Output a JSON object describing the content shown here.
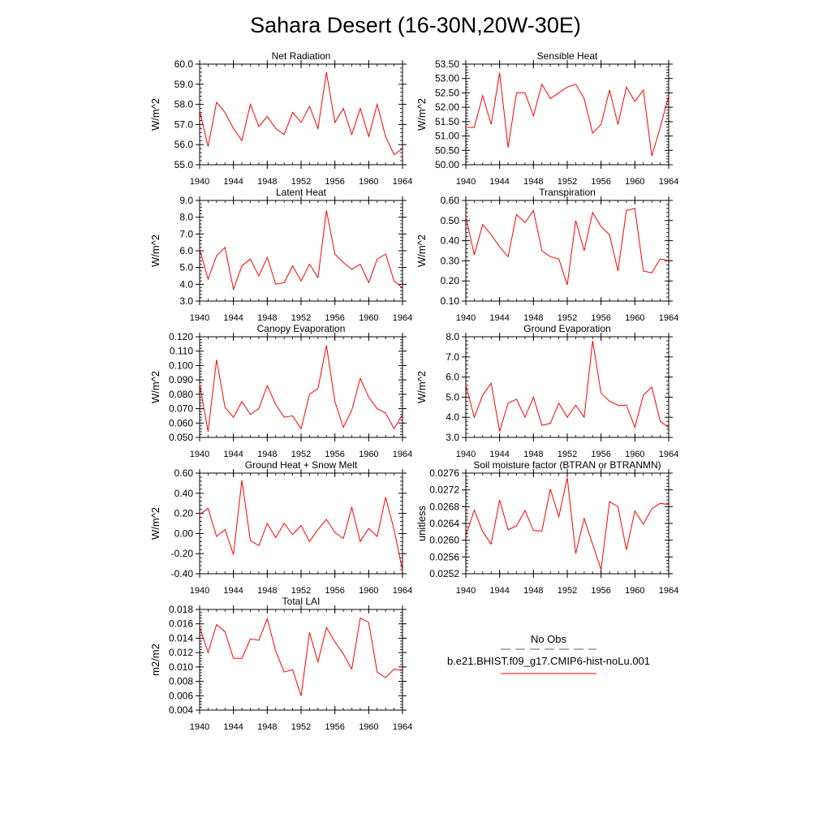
{
  "figure": {
    "title": "Sahara Desert (16-30N,20W-30E)"
  },
  "legend": {
    "obs_label": "No Obs",
    "obs_color": "#5a5a99",
    "model_label": "b.e21.BHIST.f09_g17.CMIP6-hist-noLu.001",
    "model_color": "#ff0000"
  },
  "chart_data": [
    {
      "type": "line",
      "title": "Net Radiation",
      "ylabel": "W/m^2",
      "xlabel": "",
      "xlim": [
        1940,
        1964
      ],
      "ylim": [
        55.0,
        60.0
      ],
      "xticks": [
        1940,
        1944,
        1948,
        1952,
        1956,
        1960,
        1964
      ],
      "yticks": [
        "55.0",
        "56.0",
        "57.0",
        "58.0",
        "59.0",
        "60.0"
      ],
      "x": [
        1940,
        1941,
        1942,
        1943,
        1944,
        1945,
        1946,
        1947,
        1948,
        1949,
        1950,
        1951,
        1952,
        1953,
        1954,
        1955,
        1956,
        1957,
        1958,
        1959,
        1960,
        1961,
        1962,
        1963,
        1964
      ],
      "series": [
        {
          "name": "b.e21.BHIST.f09_g17.CMIP6-hist-noLu.001",
          "color": "#ff0000",
          "values": [
            57.7,
            55.9,
            58.1,
            57.6,
            56.8,
            56.2,
            58.0,
            56.9,
            57.4,
            56.8,
            56.5,
            57.6,
            57.1,
            57.9,
            56.8,
            59.6,
            57.1,
            57.8,
            56.5,
            57.8,
            56.4,
            58.0,
            56.4,
            55.5,
            55.8
          ]
        }
      ]
    },
    {
      "type": "line",
      "title": "Sensible Heat",
      "ylabel": "W/m^2",
      "xlabel": "",
      "xlim": [
        1940,
        1964
      ],
      "ylim": [
        50.0,
        53.5
      ],
      "xticks": [
        1940,
        1944,
        1948,
        1952,
        1956,
        1960,
        1964
      ],
      "yticks": [
        "50.00",
        "50.50",
        "51.00",
        "51.50",
        "52.00",
        "52.50",
        "53.00",
        "53.50"
      ],
      "x": [
        1940,
        1941,
        1942,
        1943,
        1944,
        1945,
        1946,
        1947,
        1948,
        1949,
        1950,
        1951,
        1952,
        1953,
        1954,
        1955,
        1956,
        1957,
        1958,
        1959,
        1960,
        1961,
        1962,
        1963,
        1964
      ],
      "series": [
        {
          "name": "b.e21.BHIST.f09_g17.CMIP6-hist-noLu.001",
          "color": "#ff0000",
          "values": [
            51.3,
            51.3,
            52.4,
            51.4,
            53.2,
            50.6,
            52.5,
            52.5,
            51.7,
            52.8,
            52.3,
            52.5,
            52.7,
            52.8,
            52.3,
            51.1,
            51.4,
            52.6,
            51.4,
            52.7,
            52.2,
            52.6,
            50.3,
            51.3,
            52.4
          ]
        }
      ]
    },
    {
      "type": "line",
      "title": "Latent Heat",
      "ylabel": "W/m^2",
      "xlabel": "",
      "xlim": [
        1940,
        1964
      ],
      "ylim": [
        3.0,
        9.0
      ],
      "xticks": [
        1940,
        1944,
        1948,
        1952,
        1956,
        1960,
        1964
      ],
      "yticks": [
        "3.0",
        "4.0",
        "5.0",
        "6.0",
        "7.0",
        "8.0",
        "9.0"
      ],
      "x": [
        1940,
        1941,
        1942,
        1943,
        1944,
        1945,
        1946,
        1947,
        1948,
        1949,
        1950,
        1951,
        1952,
        1953,
        1954,
        1955,
        1956,
        1957,
        1958,
        1959,
        1960,
        1961,
        1962,
        1963,
        1964
      ],
      "series": [
        {
          "name": "b.e21.BHIST.f09_g17.CMIP6-hist-noLu.001",
          "color": "#ff0000",
          "values": [
            6.1,
            4.3,
            5.7,
            6.2,
            3.7,
            5.1,
            5.5,
            4.5,
            5.6,
            4.0,
            4.1,
            5.1,
            4.2,
            5.2,
            4.4,
            8.4,
            5.8,
            5.3,
            4.9,
            5.2,
            4.1,
            5.5,
            5.8,
            4.2,
            3.8
          ]
        }
      ]
    },
    {
      "type": "line",
      "title": "Transpiration",
      "ylabel": "W/m^2",
      "xlabel": "",
      "xlim": [
        1940,
        1964
      ],
      "ylim": [
        0.1,
        0.6
      ],
      "xticks": [
        1940,
        1944,
        1948,
        1952,
        1956,
        1960,
        1964
      ],
      "yticks": [
        "0.10",
        "0.20",
        "0.30",
        "0.40",
        "0.50",
        "0.60"
      ],
      "x": [
        1940,
        1941,
        1942,
        1943,
        1944,
        1945,
        1946,
        1947,
        1948,
        1949,
        1950,
        1951,
        1952,
        1953,
        1954,
        1955,
        1956,
        1957,
        1958,
        1959,
        1960,
        1961,
        1962,
        1963,
        1964
      ],
      "series": [
        {
          "name": "b.e21.BHIST.f09_g17.CMIP6-hist-noLu.001",
          "color": "#ff0000",
          "values": [
            0.52,
            0.33,
            0.48,
            0.43,
            0.37,
            0.32,
            0.53,
            0.49,
            0.55,
            0.35,
            0.32,
            0.31,
            0.18,
            0.5,
            0.35,
            0.54,
            0.47,
            0.43,
            0.25,
            0.55,
            0.56,
            0.25,
            0.24,
            0.31,
            0.3
          ]
        }
      ]
    },
    {
      "type": "line",
      "title": "Canopy Evaporation",
      "ylabel": "W/m^2",
      "xlabel": "",
      "xlim": [
        1940,
        1964
      ],
      "ylim": [
        0.05,
        0.12
      ],
      "xticks": [
        1940,
        1944,
        1948,
        1952,
        1956,
        1960,
        1964
      ],
      "yticks": [
        "0.050",
        "0.060",
        "0.070",
        "0.080",
        "0.090",
        "0.100",
        "0.110",
        "0.120"
      ],
      "x": [
        1940,
        1941,
        1942,
        1943,
        1944,
        1945,
        1946,
        1947,
        1948,
        1949,
        1950,
        1951,
        1952,
        1953,
        1954,
        1955,
        1956,
        1957,
        1958,
        1959,
        1960,
        1961,
        1962,
        1963,
        1964
      ],
      "series": [
        {
          "name": "b.e21.BHIST.f09_g17.CMIP6-hist-noLu.001",
          "color": "#ff0000",
          "values": [
            0.087,
            0.054,
            0.104,
            0.071,
            0.064,
            0.075,
            0.066,
            0.07,
            0.086,
            0.073,
            0.064,
            0.065,
            0.056,
            0.08,
            0.084,
            0.114,
            0.075,
            0.057,
            0.069,
            0.091,
            0.078,
            0.07,
            0.067,
            0.056,
            0.066
          ]
        }
      ]
    },
    {
      "type": "line",
      "title": "Ground Evaporation",
      "ylabel": "W/m^2",
      "xlabel": "",
      "xlim": [
        1940,
        1964
      ],
      "ylim": [
        3.0,
        8.0
      ],
      "xticks": [
        1940,
        1944,
        1948,
        1952,
        1956,
        1960,
        1964
      ],
      "yticks": [
        "3.0",
        "4.0",
        "5.0",
        "6.0",
        "7.0",
        "8.0"
      ],
      "x": [
        1940,
        1941,
        1942,
        1943,
        1944,
        1945,
        1946,
        1947,
        1948,
        1949,
        1950,
        1951,
        1952,
        1953,
        1954,
        1955,
        1956,
        1957,
        1958,
        1959,
        1960,
        1961,
        1962,
        1963,
        1964
      ],
      "series": [
        {
          "name": "b.e21.BHIST.f09_g17.CMIP6-hist-noLu.001",
          "color": "#ff0000",
          "values": [
            5.6,
            4.0,
            5.1,
            5.7,
            3.3,
            4.7,
            4.9,
            4.0,
            5.0,
            3.6,
            3.7,
            4.7,
            4.0,
            4.6,
            4.0,
            7.8,
            5.2,
            4.8,
            4.6,
            4.6,
            3.5,
            5.1,
            5.5,
            3.8,
            3.5
          ]
        }
      ]
    },
    {
      "type": "line",
      "title": "Ground Heat + Snow Melt",
      "ylabel": "W/m^2",
      "xlabel": "",
      "xlim": [
        1940,
        1964
      ],
      "ylim": [
        -0.4,
        0.6
      ],
      "xticks": [
        1940,
        1944,
        1948,
        1952,
        1956,
        1960,
        1964
      ],
      "yticks": [
        "-0.40",
        "-0.20",
        "0.00",
        "0.20",
        "0.40",
        "0.60"
      ],
      "x": [
        1940,
        1941,
        1942,
        1943,
        1944,
        1945,
        1946,
        1947,
        1948,
        1949,
        1950,
        1951,
        1952,
        1953,
        1954,
        1955,
        1956,
        1957,
        1958,
        1959,
        1960,
        1961,
        1962,
        1963,
        1964
      ],
      "series": [
        {
          "name": "b.e21.BHIST.f09_g17.CMIP6-hist-noLu.001",
          "color": "#ff0000",
          "values": [
            0.19,
            0.25,
            -0.03,
            0.04,
            -0.21,
            0.53,
            -0.07,
            -0.12,
            0.1,
            -0.04,
            0.1,
            -0.01,
            0.08,
            -0.08,
            0.04,
            0.14,
            0.01,
            -0.05,
            0.26,
            -0.08,
            0.05,
            -0.03,
            0.36,
            0.04,
            -0.37
          ]
        }
      ]
    },
    {
      "type": "line",
      "title": "Soil moisture factor (BTRAN or BTRANMN)",
      "ylabel": "unitless",
      "xlabel": "",
      "xlim": [
        1940,
        1964
      ],
      "ylim": [
        0.0252,
        0.0276
      ],
      "xticks": [
        1940,
        1944,
        1948,
        1952,
        1956,
        1960,
        1964
      ],
      "yticks": [
        "0.0252",
        "0.0256",
        "0.0260",
        "0.0264",
        "0.0268",
        "0.0272",
        "0.0276"
      ],
      "x": [
        1940,
        1941,
        1942,
        1943,
        1944,
        1945,
        1946,
        1947,
        1948,
        1949,
        1950,
        1951,
        1952,
        1953,
        1954,
        1955,
        1956,
        1957,
        1958,
        1959,
        1960,
        1961,
        1962,
        1963,
        1964
      ],
      "series": [
        {
          "name": "b.e21.BHIST.f09_g17.CMIP6-hist-noLu.001",
          "color": "#ff0000",
          "values": [
            0.0261,
            0.02672,
            0.0262,
            0.02591,
            0.02696,
            0.02625,
            0.02634,
            0.02671,
            0.02623,
            0.02622,
            0.02722,
            0.02656,
            0.02749,
            0.02568,
            0.02652,
            0.0259,
            0.0253,
            0.02692,
            0.0268,
            0.02577,
            0.0267,
            0.02638,
            0.02675,
            0.02688,
            0.02685
          ]
        }
      ]
    },
    {
      "type": "line",
      "title": "Total LAI",
      "ylabel": "m2/m2",
      "xlabel": "",
      "xlim": [
        1940,
        1964
      ],
      "ylim": [
        0.004,
        0.018
      ],
      "xticks": [
        1940,
        1944,
        1948,
        1952,
        1956,
        1960,
        1964
      ],
      "yticks": [
        "0.004",
        "0.006",
        "0.008",
        "0.010",
        "0.012",
        "0.014",
        "0.016",
        "0.018"
      ],
      "x": [
        1940,
        1941,
        1942,
        1943,
        1944,
        1945,
        1946,
        1947,
        1948,
        1949,
        1950,
        1951,
        1952,
        1953,
        1954,
        1955,
        1956,
        1957,
        1958,
        1959,
        1960,
        1961,
        1962,
        1963,
        1964
      ],
      "series": [
        {
          "name": "b.e21.BHIST.f09_g17.CMIP6-hist-noLu.001",
          "color": "#ff0000",
          "values": [
            0.0156,
            0.012,
            0.0159,
            0.0149,
            0.0112,
            0.0112,
            0.0139,
            0.0137,
            0.0167,
            0.0122,
            0.0093,
            0.0096,
            0.006,
            0.0148,
            0.0107,
            0.0155,
            0.0135,
            0.0118,
            0.0097,
            0.0168,
            0.0162,
            0.0093,
            0.0085,
            0.0097,
            0.0095
          ]
        }
      ]
    }
  ]
}
